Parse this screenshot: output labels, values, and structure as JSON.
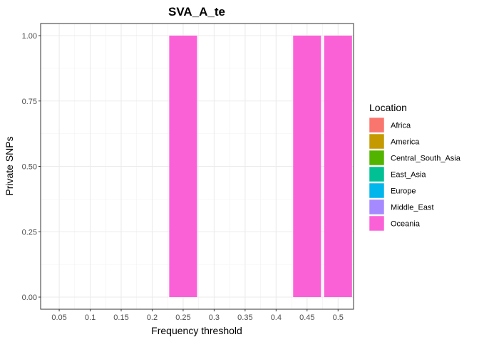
{
  "chart_data": {
    "type": "bar",
    "title": "SVA_A_te",
    "xlabel": "Frequency threshold",
    "ylabel": "Private SNPs",
    "categories": [
      "0.05",
      "0.1",
      "0.15",
      "0.2",
      "0.25",
      "0.3",
      "0.35",
      "0.4",
      "0.45",
      "0.5"
    ],
    "ylim": [
      0,
      1
    ],
    "yticks": [
      "0.00",
      "0.25",
      "0.50",
      "0.75",
      "1.00"
    ],
    "grid": true,
    "legend": {
      "title": "Location",
      "position": "right",
      "entries": [
        {
          "name": "Africa",
          "color": "#F8766D"
        },
        {
          "name": "America",
          "color": "#C49A00"
        },
        {
          "name": "Central_South_Asia",
          "color": "#53B400"
        },
        {
          "name": "East_Asia",
          "color": "#00C094"
        },
        {
          "name": "Europe",
          "color": "#00B6EB"
        },
        {
          "name": "Middle_East",
          "color": "#A58AFF"
        },
        {
          "name": "Oceania",
          "color": "#FB61D7"
        }
      ]
    },
    "series": [
      {
        "name": "Oceania",
        "color": "#FB61D7",
        "points": [
          {
            "x": 0.25,
            "y": 1
          },
          {
            "x": 0.45,
            "y": 1
          },
          {
            "x": 0.5,
            "y": 1
          }
        ]
      }
    ]
  }
}
